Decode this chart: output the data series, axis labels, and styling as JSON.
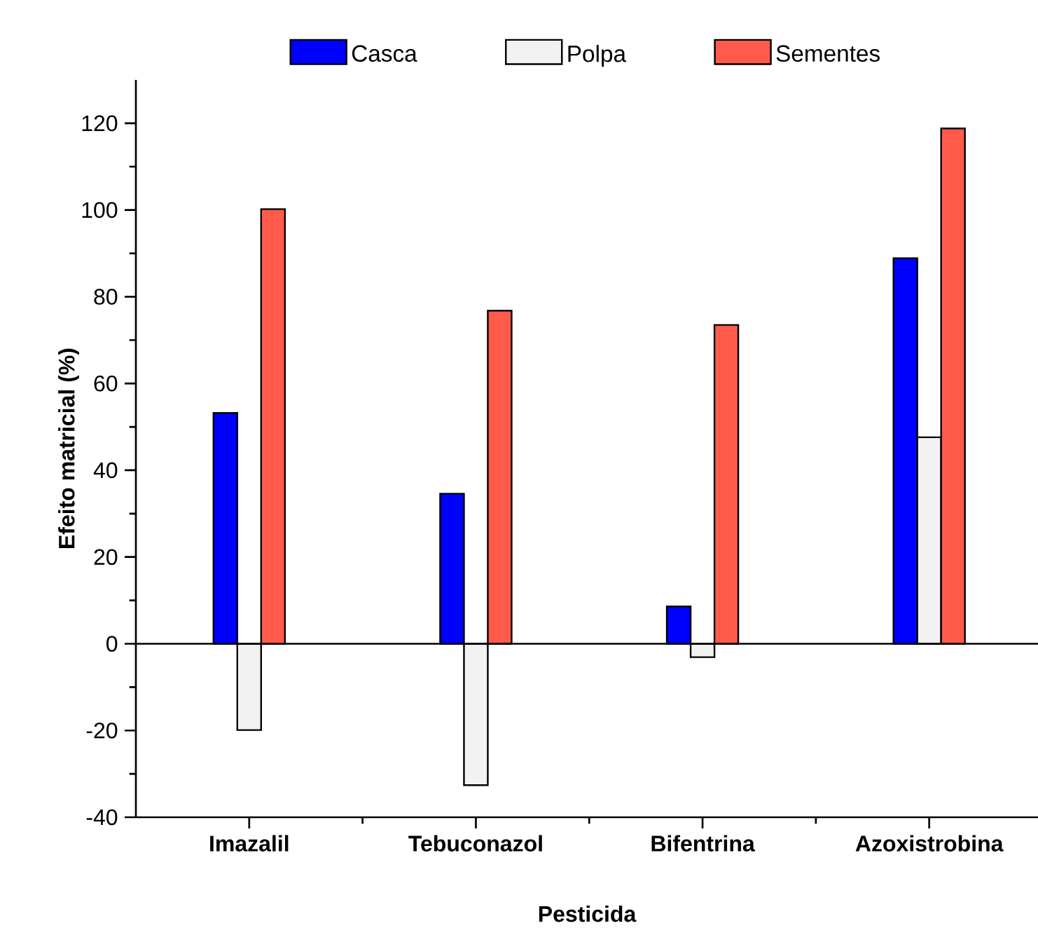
{
  "chart_data": {
    "type": "bar",
    "xlabel": "Pesticida",
    "ylabel": "Efeito matricial (%)",
    "categories": [
      "Imazalil",
      "Tebuconazol",
      "Bifentrina",
      "Azoxistrobina"
    ],
    "series": [
      {
        "name": "Casca",
        "color": "#0000ff",
        "values": [
          53.2,
          34.6,
          8.6,
          88.9
        ]
      },
      {
        "name": "Polpa",
        "color": "#f2f2f2",
        "values": [
          -19.9,
          -32.6,
          -3.1,
          47.6
        ]
      },
      {
        "name": "Sementes",
        "color": "#ff5a4a",
        "values": [
          100.2,
          76.8,
          73.5,
          118.8
        ]
      }
    ],
    "ylim": [
      -40,
      130
    ],
    "yticks": [
      -40,
      -20,
      0,
      20,
      40,
      60,
      80,
      100,
      120
    ],
    "ref_lines": [
      {
        "axis": "y",
        "value": 0
      }
    ],
    "grid": false,
    "legend": "top"
  }
}
